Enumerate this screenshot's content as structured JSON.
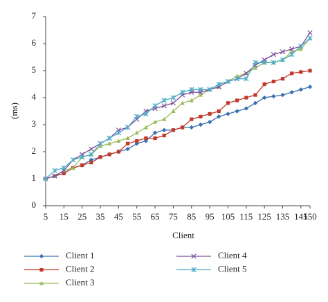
{
  "chart_data": {
    "type": "line",
    "x_label": "Client",
    "y_label": "(ms)",
    "x": [
      5,
      10,
      15,
      20,
      25,
      30,
      35,
      40,
      45,
      50,
      55,
      60,
      65,
      70,
      75,
      80,
      85,
      90,
      95,
      100,
      105,
      110,
      115,
      120,
      125,
      130,
      135,
      140,
      145,
      150
    ],
    "xlim": [
      5,
      150
    ],
    "xticks": [
      5,
      15,
      25,
      35,
      45,
      55,
      65,
      75,
      85,
      95,
      105,
      115,
      125,
      135,
      145,
      150
    ],
    "ylim": [
      0,
      7
    ],
    "yticks": [
      0,
      1,
      2,
      3,
      4,
      5,
      6,
      7
    ],
    "grid": false,
    "legend": "bottom",
    "series": [
      {
        "name": "Client 1",
        "color": "#3a6fb0",
        "marker": "diamond",
        "values": [
          1.0,
          1.1,
          1.2,
          1.4,
          1.5,
          1.7,
          1.8,
          1.9,
          2.0,
          2.1,
          2.3,
          2.4,
          2.7,
          2.8,
          2.8,
          2.9,
          2.9,
          3.0,
          3.1,
          3.3,
          3.4,
          3.5,
          3.6,
          3.8,
          4.0,
          4.05,
          4.1,
          4.2,
          4.3,
          4.4
        ]
      },
      {
        "name": "Client 2",
        "color": "#c0392b",
        "marker": "square",
        "values": [
          1.0,
          1.1,
          1.2,
          1.4,
          1.5,
          1.6,
          1.8,
          1.9,
          2.0,
          2.3,
          2.4,
          2.5,
          2.5,
          2.6,
          2.8,
          2.9,
          3.2,
          3.3,
          3.4,
          3.5,
          3.8,
          3.9,
          4.0,
          4.1,
          4.5,
          4.6,
          4.7,
          4.9,
          4.95,
          5.0
        ]
      },
      {
        "name": "Client 3",
        "color": "#9bbb59",
        "marker": "triangle",
        "values": [
          1.0,
          1.1,
          1.3,
          1.4,
          1.8,
          1.9,
          2.2,
          2.3,
          2.4,
          2.5,
          2.7,
          2.9,
          3.1,
          3.2,
          3.5,
          3.8,
          3.9,
          4.1,
          4.3,
          4.4,
          4.6,
          4.8,
          4.9,
          5.1,
          5.3,
          5.3,
          5.4,
          5.7,
          5.8,
          6.2
        ]
      },
      {
        "name": "Client 4",
        "color": "#7e4f9c",
        "marker": "x",
        "values": [
          1.0,
          1.1,
          1.3,
          1.7,
          1.9,
          2.1,
          2.3,
          2.5,
          2.8,
          2.9,
          3.2,
          3.5,
          3.6,
          3.7,
          3.8,
          4.1,
          4.2,
          4.2,
          4.3,
          4.4,
          4.6,
          4.7,
          4.9,
          5.2,
          5.4,
          5.6,
          5.7,
          5.8,
          5.9,
          6.4
        ]
      },
      {
        "name": "Client 5",
        "color": "#4bacc6",
        "marker": "star",
        "values": [
          1.0,
          1.3,
          1.4,
          1.7,
          1.8,
          1.9,
          2.3,
          2.5,
          2.7,
          2.9,
          3.3,
          3.4,
          3.7,
          3.9,
          4.0,
          4.2,
          4.3,
          4.3,
          4.3,
          4.5,
          4.6,
          4.7,
          4.7,
          5.3,
          5.3,
          5.3,
          5.4,
          5.6,
          5.9,
          6.2
        ]
      }
    ]
  }
}
